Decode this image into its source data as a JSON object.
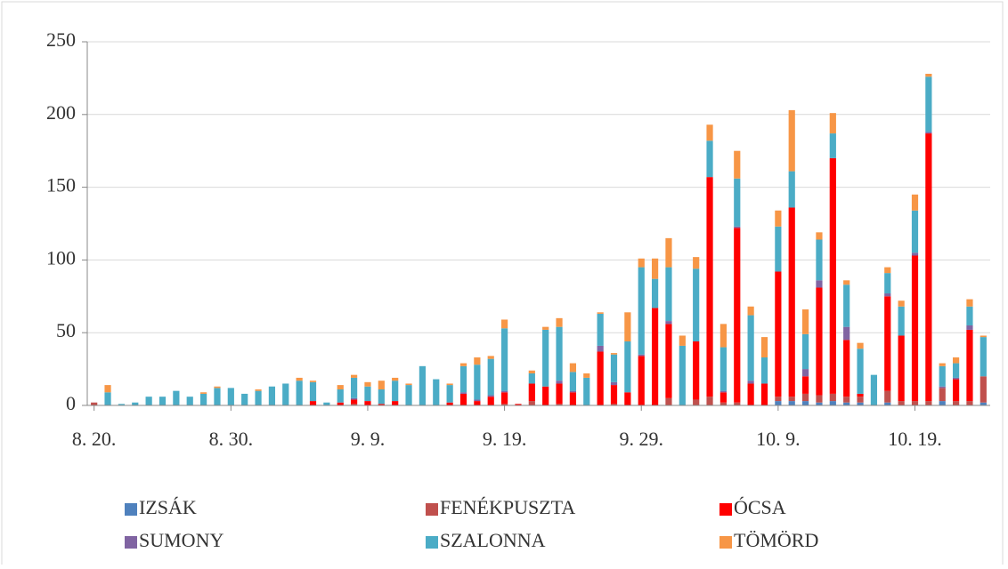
{
  "chart_data": {
    "type": "stacked_bar",
    "categories": [
      "8. 20.",
      null,
      null,
      null,
      null,
      null,
      null,
      null,
      null,
      null,
      "8. 30.",
      null,
      null,
      null,
      null,
      null,
      null,
      null,
      null,
      null,
      "9. 9.",
      null,
      null,
      null,
      null,
      null,
      null,
      null,
      null,
      null,
      "9. 19.",
      null,
      null,
      null,
      null,
      null,
      null,
      null,
      null,
      null,
      "9. 29.",
      null,
      null,
      null,
      null,
      null,
      null,
      null,
      null,
      null,
      "10. 9.",
      null,
      null,
      null,
      null,
      null,
      null,
      null,
      null,
      null,
      "10. 19.",
      null,
      null,
      null,
      null,
      null
    ],
    "series": [
      {
        "name": "IZSÁK",
        "color": "#4f81bd",
        "values": [
          0,
          0,
          0,
          0,
          0,
          0,
          0,
          0,
          0,
          0,
          0,
          0,
          0,
          0,
          0,
          0,
          0,
          0,
          0,
          0,
          0,
          0,
          0,
          0,
          0,
          0,
          0,
          0,
          0,
          0,
          0,
          0,
          0,
          0,
          0,
          0,
          0,
          0,
          0,
          0,
          0,
          0,
          0,
          0,
          0,
          0,
          0,
          0,
          0,
          0,
          3,
          3,
          3,
          2,
          3,
          2,
          2,
          0,
          2,
          0,
          0,
          0,
          3,
          0,
          0,
          2
        ]
      },
      {
        "name": "FENÉKPUSZTA",
        "color": "#c0504d",
        "values": [
          2,
          0,
          0,
          0,
          0,
          0,
          0,
          0,
          0,
          0,
          0,
          0,
          0,
          0,
          0,
          0,
          0,
          0,
          0,
          1,
          0,
          0,
          0,
          0,
          0,
          0,
          0,
          0,
          0,
          0,
          1,
          0,
          3,
          0,
          1,
          0,
          0,
          0,
          1,
          0,
          0,
          0,
          5,
          0,
          4,
          6,
          2,
          2,
          0,
          0,
          3,
          3,
          5,
          5,
          5,
          4,
          4,
          0,
          8,
          3,
          3,
          3,
          9,
          3,
          3,
          18
        ]
      },
      {
        "name": "ÓCSA",
        "color": "#ff0000",
        "values": [
          0,
          0,
          0,
          0,
          0,
          0,
          0,
          0,
          0,
          0,
          0,
          0,
          0,
          0,
          0,
          0,
          3,
          0,
          2,
          3,
          3,
          1,
          3,
          0,
          0,
          0,
          2,
          8,
          3,
          6,
          8,
          1,
          12,
          13,
          14,
          9,
          0,
          37,
          13,
          9,
          34,
          67,
          51,
          0,
          40,
          151,
          7,
          120,
          15,
          15,
          86,
          130,
          12,
          74,
          162,
          39,
          2,
          0,
          65,
          45,
          100,
          184,
          0,
          15,
          49,
          0
        ]
      },
      {
        "name": "SUMONY",
        "color": "#8064a2",
        "values": [
          0,
          0,
          0,
          0,
          0,
          0,
          0,
          0,
          0,
          0,
          0,
          0,
          0,
          0,
          0,
          0,
          0,
          0,
          0,
          1,
          0,
          0,
          0,
          0,
          0,
          0,
          0,
          1,
          1,
          1,
          1,
          0,
          0,
          0,
          2,
          1,
          0,
          4,
          2,
          0,
          1,
          0,
          2,
          0,
          0,
          0,
          1,
          1,
          2,
          0,
          0,
          0,
          5,
          5,
          0,
          9,
          0,
          0,
          2,
          0,
          2,
          1,
          1,
          1,
          3,
          0
        ]
      },
      {
        "name": "SZALONNA",
        "color": "#4bacc6",
        "values": [
          0,
          9,
          1,
          2,
          6,
          6,
          10,
          6,
          8,
          12,
          12,
          8,
          10,
          13,
          15,
          17,
          13,
          2,
          9,
          14,
          10,
          10,
          14,
          14,
          27,
          18,
          12,
          18,
          24,
          25,
          43,
          0,
          7,
          39,
          37,
          13,
          19,
          22,
          19,
          35,
          60,
          20,
          37,
          41,
          50,
          25,
          30,
          33,
          45,
          18,
          31,
          25,
          24,
          28,
          17,
          29,
          31,
          21,
          14,
          20,
          29,
          38,
          14,
          10,
          13,
          27
        ]
      },
      {
        "name": "TÖMÖRD",
        "color": "#f79646",
        "values": [
          0,
          5,
          0,
          0,
          0,
          0,
          0,
          0,
          1,
          1,
          0,
          0,
          1,
          0,
          0,
          2,
          1,
          0,
          3,
          2,
          3,
          6,
          2,
          1,
          0,
          0,
          1,
          2,
          5,
          2,
          6,
          0,
          2,
          2,
          6,
          6,
          3,
          1,
          1,
          20,
          6,
          14,
          20,
          7,
          8,
          11,
          16,
          19,
          6,
          14,
          11,
          42,
          17,
          5,
          14,
          3,
          4,
          0,
          4,
          4,
          11,
          2,
          2,
          4,
          5,
          1
        ]
      }
    ],
    "ylim": [
      0,
      250
    ],
    "yticks": [
      0,
      50,
      100,
      150,
      200,
      250
    ],
    "grid": true
  }
}
